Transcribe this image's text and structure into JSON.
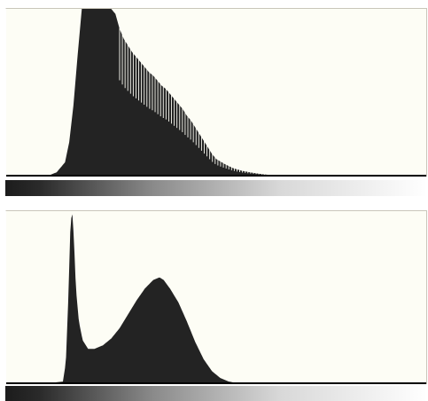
{
  "colors": {
    "panel_background": "#fdfdf5",
    "histogram_fill": "#232323",
    "baseline": "#000000",
    "gradient_dark": "#1c1c1c",
    "gradient_light": "#ffffff"
  },
  "histograms": [
    {
      "id": "top",
      "description_shape": "right-skewed, clipped at top, comb/gapped tail",
      "levels": [
        [
          0,
          0
        ],
        [
          3,
          0
        ],
        [
          10,
          0
        ],
        [
          12,
          0.02
        ],
        [
          14,
          0.08
        ],
        [
          15,
          0.2
        ],
        [
          16,
          0.42
        ],
        [
          17,
          0.72
        ],
        [
          18,
          1.0
        ],
        [
          19,
          1.0
        ],
        [
          20,
          1.0
        ],
        [
          21,
          1.0
        ],
        [
          22,
          1.0
        ],
        [
          23,
          1.0
        ],
        [
          24,
          1.0
        ],
        [
          25,
          1.0
        ],
        [
          26,
          0.97
        ],
        [
          27,
          0.88
        ],
        [
          28,
          0.82
        ],
        [
          29,
          0.78
        ],
        [
          30,
          0.74
        ],
        [
          31,
          0.71
        ],
        [
          32,
          0.68
        ],
        [
          33,
          0.65
        ],
        [
          34,
          0.62
        ],
        [
          35,
          0.6
        ],
        [
          36,
          0.57
        ],
        [
          37,
          0.54
        ],
        [
          38,
          0.52
        ],
        [
          39,
          0.49
        ],
        [
          40,
          0.46
        ],
        [
          41,
          0.43
        ],
        [
          42,
          0.4
        ],
        [
          43,
          0.36
        ],
        [
          44,
          0.33
        ],
        [
          45,
          0.29
        ],
        [
          46,
          0.25
        ],
        [
          47,
          0.21
        ],
        [
          48,
          0.17
        ],
        [
          49,
          0.13
        ],
        [
          50,
          0.1
        ],
        [
          52,
          0.07
        ],
        [
          54,
          0.045
        ],
        [
          56,
          0.03
        ],
        [
          58,
          0.02
        ],
        [
          60,
          0.012
        ],
        [
          62,
          0.006
        ],
        [
          64,
          0.002
        ],
        [
          66,
          0
        ],
        [
          100,
          0
        ]
      ],
      "comb_gaps": true,
      "comb_range": [
        27,
        62
      ]
    },
    {
      "id": "bottom",
      "description_shape": "bimodal: narrow dark spike and broad mid-tone peak",
      "levels": [
        [
          0,
          0
        ],
        [
          10,
          0
        ],
        [
          13.5,
          0.01
        ],
        [
          14.2,
          0.12
        ],
        [
          14.8,
          0.5
        ],
        [
          15.3,
          0.92
        ],
        [
          15.7,
          1.0
        ],
        [
          16.1,
          0.85
        ],
        [
          16.6,
          0.55
        ],
        [
          17.3,
          0.36
        ],
        [
          18.2,
          0.25
        ],
        [
          19.5,
          0.2
        ],
        [
          21,
          0.2
        ],
        [
          23,
          0.22
        ],
        [
          25,
          0.26
        ],
        [
          27,
          0.32
        ],
        [
          29,
          0.4
        ],
        [
          31,
          0.48
        ],
        [
          33,
          0.55
        ],
        [
          35,
          0.6
        ],
        [
          36.5,
          0.615
        ],
        [
          37.5,
          0.6
        ],
        [
          39,
          0.55
        ],
        [
          41,
          0.47
        ],
        [
          43,
          0.36
        ],
        [
          45,
          0.24
        ],
        [
          47,
          0.14
        ],
        [
          49,
          0.07
        ],
        [
          51,
          0.03
        ],
        [
          53,
          0.01
        ],
        [
          55,
          0
        ],
        [
          100,
          0
        ]
      ],
      "comb_gaps": false
    }
  ]
}
